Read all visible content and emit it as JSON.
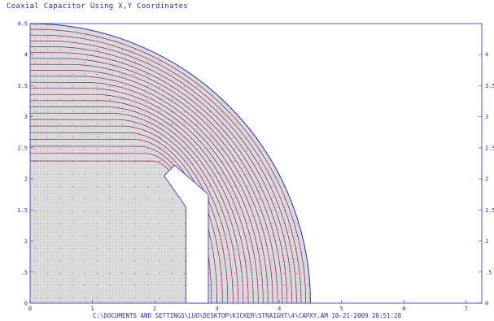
{
  "window": {
    "title": "Coaxial Capacitor Using X,Y Coordinates",
    "footer": "C:\\DOCUMENTS AND SETTINGS\\LUO\\DESKTOP\\KICKER\\STRAIGHT\\4\\CAPXY.AM 10-21-2009  20:51:28"
  },
  "colors": {
    "frame": "#2b2bb8",
    "mesh_fill": "#d6d6d6",
    "mesh_grid": "#ffffff",
    "field_lines": "#8a1f63",
    "vectors": "#c0392b",
    "background": "#ffffff"
  },
  "chart_data": {
    "type": "field-plot",
    "title": "Coaxial Capacitor Using X,Y Coordinates",
    "xlim": [
      0,
      7.25
    ],
    "ylim": [
      0,
      4.5
    ],
    "x_ticks": [
      "0",
      "1",
      "2",
      "3",
      "4",
      "5",
      "6",
      "7"
    ],
    "y_ticks_left": [
      "0",
      ".5",
      "1",
      "1.5",
      "2",
      "2.5",
      "3",
      "3.5",
      "4",
      "4.5"
    ],
    "y_ticks_right": [
      "0",
      ".5",
      "1",
      "1.5",
      "2",
      "2.5",
      "3",
      "3.5",
      "4"
    ],
    "outer_conductor": {
      "shape": "quarter-circle",
      "radius": 4.5
    },
    "inner_conductor": {
      "shape": "polygon",
      "points": [
        [
          2.5,
          0
        ],
        [
          2.5,
          1.55
        ],
        [
          2.15,
          2.05
        ],
        [
          2.32,
          2.22
        ],
        [
          2.86,
          1.75
        ],
        [
          2.86,
          0
        ]
      ]
    },
    "field_lines": 22,
    "grid": true
  }
}
